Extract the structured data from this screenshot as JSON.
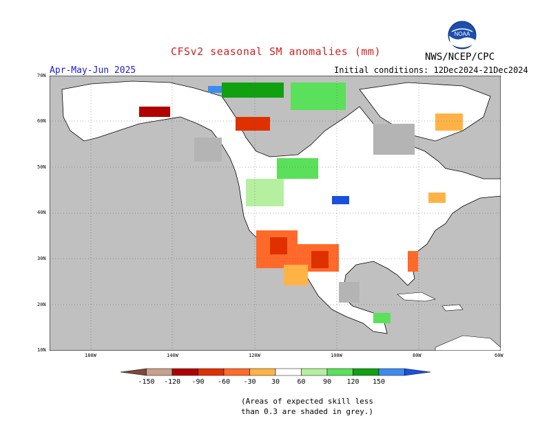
{
  "header": {
    "title": "CFSv2 seasonal SM anomalies (mm)",
    "season": "Apr-May-Jun 2025",
    "initial_conditions": "Initial conditions: 12Dec2024-21Dec2024",
    "organization": "NWS/NCEP/CPC",
    "logo_text": "NOAA"
  },
  "map": {
    "lat_labels": [
      "70N",
      "60N",
      "50N",
      "40N",
      "30N",
      "20N",
      "10N"
    ],
    "lon_labels": [
      "180W",
      "140W",
      "120W",
      "100W",
      "80W",
      "60W"
    ],
    "land_color": "#ffffff",
    "ocean_color": "#c0c0c0",
    "low_skill_color": "#b4b4b4"
  },
  "colorbar": {
    "ticks": [
      "-150",
      "-120",
      "-90",
      "-60",
      "-30",
      "30",
      "60",
      "90",
      "120",
      "150"
    ],
    "colors": [
      "#7b4a3a",
      "#c8a08c",
      "#b00000",
      "#e03000",
      "#ff6a2a",
      "#ffb347",
      "#ffffff",
      "#b4f0a0",
      "#5ae05a",
      "#10a010",
      "#3c8cf0",
      "#1a50e0"
    ]
  },
  "footnote": {
    "line1": "(Areas of expected skill less",
    "line2": "than 0.3 are shaded in grey.)"
  }
}
